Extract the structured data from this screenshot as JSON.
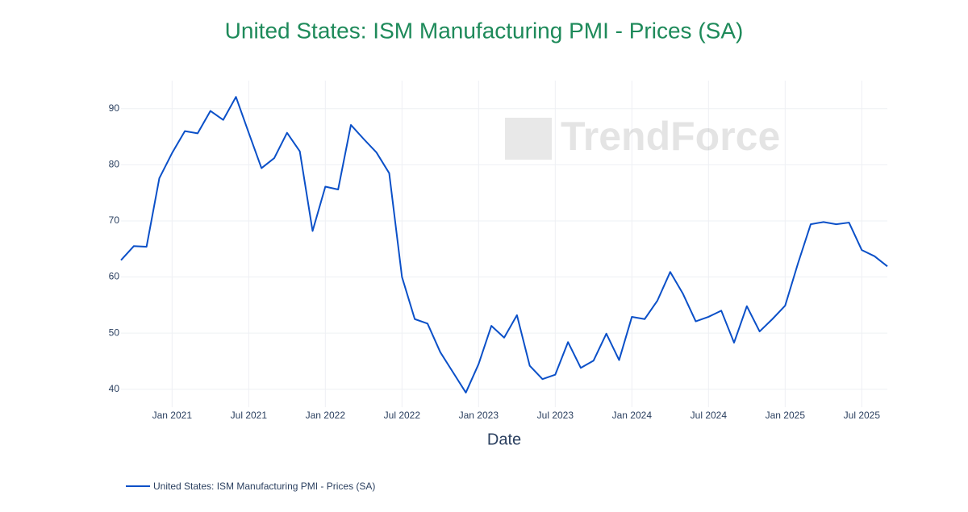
{
  "chart_data": {
    "type": "line",
    "title": "United States: ISM Manufacturing PMI - Prices (SA)",
    "x_label": "Date",
    "watermark": "TrendForce",
    "x": [
      "2020-09",
      "2020-10",
      "2020-11",
      "2020-12",
      "2021-01",
      "2021-02",
      "2021-03",
      "2021-04",
      "2021-05",
      "2021-06",
      "2021-07",
      "2021-08",
      "2021-09",
      "2021-10",
      "2021-11",
      "2021-12",
      "2022-01",
      "2022-02",
      "2022-03",
      "2022-04",
      "2022-05",
      "2022-06",
      "2022-07",
      "2022-08",
      "2022-09",
      "2022-10",
      "2022-11",
      "2022-12",
      "2023-01",
      "2023-02",
      "2023-03",
      "2023-04",
      "2023-05",
      "2023-06",
      "2023-07",
      "2023-08",
      "2023-09",
      "2023-10",
      "2023-11",
      "2023-12",
      "2024-01",
      "2024-02",
      "2024-03",
      "2024-04",
      "2024-05",
      "2024-06",
      "2024-07",
      "2024-08",
      "2024-09",
      "2024-10",
      "2024-11",
      "2024-12",
      "2025-01",
      "2025-02",
      "2025-03",
      "2025-04",
      "2025-05",
      "2025-06",
      "2025-07",
      "2025-08",
      "2025-09"
    ],
    "series": [
      {
        "name": "United States: ISM Manufacturing PMI - Prices (SA)",
        "color": "#0b50c8",
        "values": [
          63.0,
          65.5,
          65.4,
          77.6,
          82.1,
          86.0,
          85.6,
          89.6,
          88.0,
          92.1,
          85.7,
          79.4,
          81.2,
          85.7,
          82.4,
          68.2,
          76.1,
          75.6,
          87.1,
          84.6,
          82.2,
          78.5,
          60.0,
          52.5,
          51.7,
          46.6,
          43.0,
          39.4,
          44.5,
          51.3,
          49.2,
          53.2,
          44.2,
          41.8,
          42.6,
          48.4,
          43.8,
          45.1,
          49.9,
          45.2,
          52.9,
          52.5,
          55.8,
          60.9,
          57.0,
          52.1,
          52.9,
          54.0,
          48.3,
          54.8,
          50.3,
          52.5,
          54.9,
          62.4,
          69.4,
          69.8,
          69.4,
          69.7,
          64.8,
          63.7,
          61.9
        ]
      }
    ],
    "xlim": [
      "2020-09",
      "2025-09"
    ],
    "xticks": [
      {
        "value": "2021-01",
        "label": "Jan 2021"
      },
      {
        "value": "2021-07",
        "label": "Jul 2021"
      },
      {
        "value": "2022-01",
        "label": "Jan 2022"
      },
      {
        "value": "2022-07",
        "label": "Jul 2022"
      },
      {
        "value": "2023-01",
        "label": "Jan 2023"
      },
      {
        "value": "2023-07",
        "label": "Jul 2023"
      },
      {
        "value": "2024-01",
        "label": "Jan 2024"
      },
      {
        "value": "2024-07",
        "label": "Jul 2024"
      },
      {
        "value": "2025-01",
        "label": "Jan 2025"
      },
      {
        "value": "2025-07",
        "label": "Jul 2025"
      }
    ],
    "ylim": [
      36.8,
      95
    ],
    "yticks": [
      40,
      50,
      60,
      70,
      80,
      90
    ],
    "grid": true
  }
}
